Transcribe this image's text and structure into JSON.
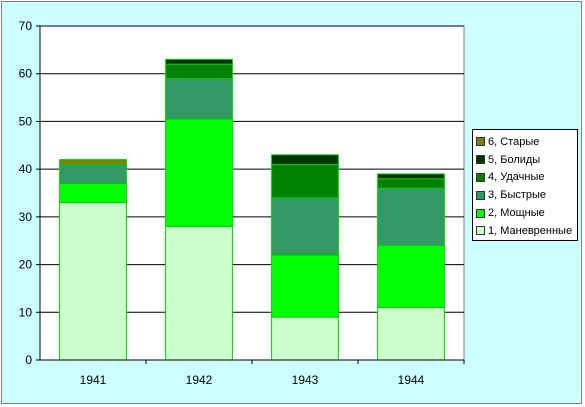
{
  "chart_data": {
    "type": "bar",
    "stacked": true,
    "categories": [
      "1941",
      "1942",
      "1943",
      "1944"
    ],
    "series": [
      {
        "name": "1, Маневренные",
        "color": "#ccffcc",
        "values": [
          33,
          28,
          9,
          11
        ]
      },
      {
        "name": "2, Мощные",
        "color": "#00ff00",
        "values": [
          4,
          22.5,
          13,
          13
        ]
      },
      {
        "name": "3, Быстрые",
        "color": "#339966",
        "values": [
          4,
          8.5,
          12,
          12
        ]
      },
      {
        "name": "4, Удачные",
        "color": "#008000",
        "values": [
          0,
          3,
          7,
          2
        ]
      },
      {
        "name": "5, Болиды",
        "color": "#003300",
        "values": [
          0,
          1,
          2,
          1
        ]
      },
      {
        "name": "6, Старые",
        "color": "#808000",
        "values": [
          1,
          0,
          0,
          0
        ]
      }
    ],
    "ylim": [
      0,
      70
    ],
    "yticks": [
      "0",
      "10",
      "20",
      "30",
      "40",
      "50",
      "60",
      "70"
    ],
    "grid": true,
    "legend_position": "right",
    "plot_background": "#ffffff",
    "chart_background": "#ccffff",
    "bar_outline": "#00cc00"
  }
}
